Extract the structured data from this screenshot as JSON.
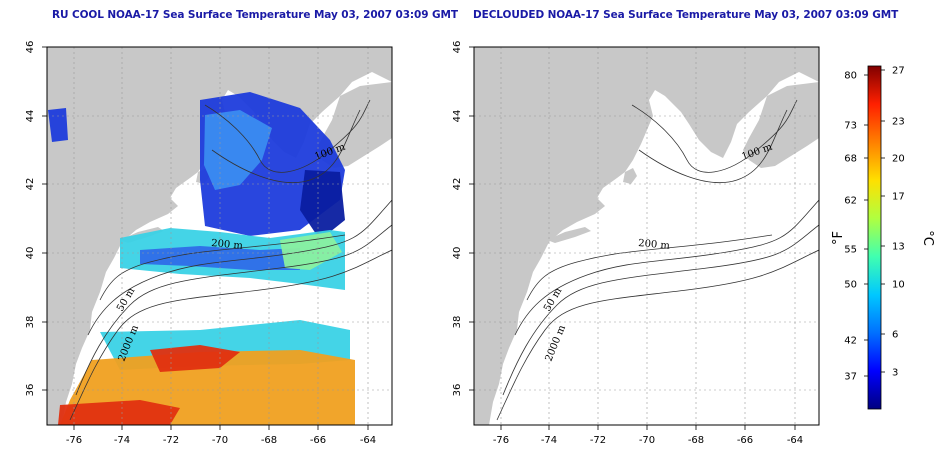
{
  "panels": [
    {
      "id": "left",
      "title": "RU COOL NOAA-17 Sea Surface Temperature May 03, 2007 03:09 GMT",
      "contour_labels": [
        "100 m",
        "200 m",
        "50 m",
        "2000 m"
      ]
    },
    {
      "id": "right",
      "title": "DECLOUDED NOAA-17 Sea Surface Temperature May 03, 2007 03:09 GMT",
      "contour_labels": [
        "100 m",
        "200 m",
        "50 m",
        "2000 m"
      ]
    }
  ],
  "axes": {
    "lon_ticks": [
      "-76",
      "-74",
      "-72",
      "-70",
      "-68",
      "-66",
      "-64"
    ],
    "lat_ticks": [
      "46",
      "44",
      "42",
      "40",
      "38",
      "36"
    ],
    "lon_range": [
      -77,
      -63
    ],
    "lat_range": [
      35,
      46
    ],
    "grid": "dotted"
  },
  "colorbar": {
    "fahrenheit_ticks": [
      "80",
      "73",
      "68",
      "62",
      "55",
      "50",
      "42",
      "37"
    ],
    "celsius_ticks": [
      "27",
      "23",
      "20",
      "17",
      "13",
      "10",
      "6",
      "3"
    ],
    "label_f": "°F",
    "label_c": "°C",
    "colors": [
      "#000080",
      "#0000ff",
      "#0070ff",
      "#00c8ff",
      "#40ffb0",
      "#b0ff40",
      "#ffe000",
      "#ff8000",
      "#ff2000",
      "#800000"
    ]
  },
  "colors": {
    "land": "#c8c8c8",
    "cold": "#1e3cdc",
    "cool": "#3a8cf0",
    "teal": "#3ad2e6",
    "warm": "#f0a020",
    "hot": "#e03010"
  }
}
